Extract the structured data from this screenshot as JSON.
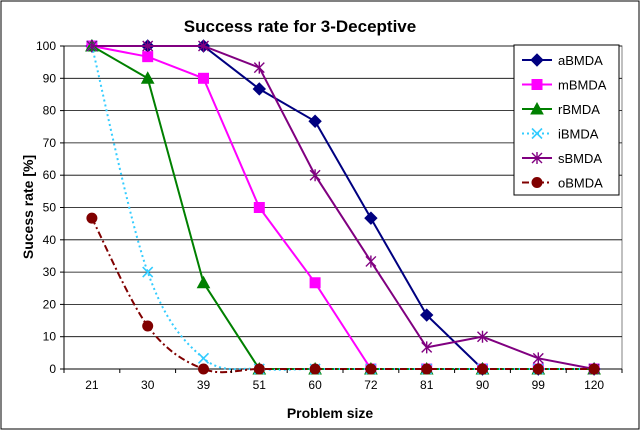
{
  "chart_data": {
    "type": "line",
    "title": "Success rate for 3-Deceptive",
    "xlabel": "Problem size",
    "ylabel": "Sucess rate [%]",
    "categories": [
      "21",
      "30",
      "39",
      "51",
      "60",
      "72",
      "81",
      "90",
      "99",
      "120"
    ],
    "ylim": [
      0,
      100
    ],
    "yticks": [
      0,
      10,
      20,
      30,
      40,
      50,
      60,
      70,
      80,
      90,
      100
    ],
    "grid": true,
    "legend": "right",
    "series": [
      {
        "name": "aBMDA",
        "color": "#000080",
        "marker": "diamond",
        "dash": "solid",
        "smooth": false,
        "values": [
          100,
          100,
          100,
          86.7,
          76.7,
          46.7,
          16.7,
          0,
          0,
          0
        ]
      },
      {
        "name": "mBMDA",
        "color": "#FF00FF",
        "marker": "square",
        "dash": "solid",
        "smooth": false,
        "values": [
          100,
          96.7,
          90,
          50,
          26.7,
          0,
          0,
          0,
          0,
          0
        ]
      },
      {
        "name": "rBMDA",
        "color": "#008000",
        "marker": "triangle",
        "dash": "solid",
        "smooth": false,
        "values": [
          100,
          90,
          26.7,
          0,
          0,
          0,
          0,
          0,
          0,
          0
        ]
      },
      {
        "name": "iBMDA",
        "color": "#33CCFF",
        "marker": "x",
        "dash": "dot",
        "smooth": true,
        "values": [
          100,
          30,
          3.3,
          0,
          0,
          0,
          0,
          0,
          0,
          0
        ]
      },
      {
        "name": "sBMDA",
        "color": "#800080",
        "marker": "star",
        "dash": "solid",
        "smooth": false,
        "values": [
          100,
          100,
          100,
          93.3,
          60,
          33.3,
          6.7,
          10,
          3.3,
          0
        ]
      },
      {
        "name": "oBMDA",
        "color": "#800000",
        "marker": "circle",
        "dash": "dashdot",
        "smooth": true,
        "values": [
          46.7,
          13.3,
          0,
          0,
          0,
          0,
          0,
          0,
          0,
          0
        ]
      }
    ]
  }
}
